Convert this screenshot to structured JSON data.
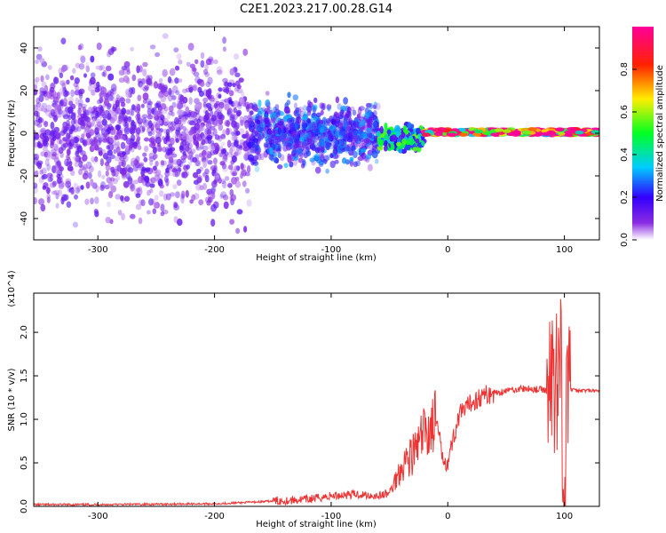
{
  "title": "C2E1.2023.217.00.28.G14",
  "colors": {
    "snr_line": "#ee3333",
    "axes": "#000000",
    "background": "#ffffff"
  },
  "chart_data": [
    {
      "type": "heatmap",
      "title": "C2E1.2023.217.00.28.G14",
      "xlabel": "Height of straight line (km)",
      "ylabel": "Frequency (Hz)",
      "xlim": [
        -355,
        130
      ],
      "ylim": [
        -50,
        50
      ],
      "x_ticks": [
        -300,
        -200,
        -100,
        0,
        100
      ],
      "x_tick_labels": [
        "-300",
        "-200",
        "-100",
        "0",
        "100"
      ],
      "y_ticks": [
        -40,
        -20,
        0,
        20,
        40
      ],
      "y_tick_labels": [
        "-40",
        "-20",
        "0",
        "20",
        "40"
      ],
      "colorbar": {
        "label": "Normalized spectral amplitude",
        "range": [
          0.0,
          1.0
        ],
        "ticks": [
          0.0,
          0.2,
          0.4,
          0.6,
          0.8
        ],
        "tick_labels": [
          "0.0",
          "0.2",
          "0.4",
          "0.6",
          "0.8"
        ],
        "colormap": "rainbow (white → purple → blue → cyan → green → yellow → red → magenta)"
      },
      "description_regions": [
        {
          "x_range": [
            -355,
            -170
          ],
          "freq_spread": [
            -50,
            50
          ],
          "amplitude": 0.1
        },
        {
          "x_range": [
            -170,
            -60
          ],
          "freq_spread": [
            -20,
            20
          ],
          "amplitude": 0.2
        },
        {
          "x_range": [
            -60,
            -20
          ],
          "freq_spread": [
            -10,
            5
          ],
          "amplitude": 0.35
        },
        {
          "x_range": [
            -20,
            130
          ],
          "freq_spread": [
            -1,
            2
          ],
          "amplitude": 0.8
        }
      ],
      "grid": false
    },
    {
      "type": "line",
      "xlabel": "Height of straight line (km)",
      "ylabel": "SNR (10 * v/v)",
      "y_multiplier": "(x10^4)",
      "xlim": [
        -355,
        130
      ],
      "ylim": [
        0,
        2.45
      ],
      "x_ticks": [
        -300,
        -200,
        -100,
        0,
        100
      ],
      "x_tick_labels": [
        "-300",
        "-200",
        "-100",
        "0",
        "100"
      ],
      "y_ticks": [
        0.0,
        0.5,
        1.0,
        1.5,
        2.0
      ],
      "y_tick_labels": [
        "0.0",
        "0.5",
        "1.0",
        "1.5",
        "2.0"
      ],
      "series": [
        {
          "color": "#ee3333",
          "x": [
            -355,
            -300,
            -250,
            -200,
            -180,
            -150,
            -120,
            -100,
            -80,
            -60,
            -50,
            -45,
            -40,
            -35,
            -30,
            -25,
            -20,
            -15,
            -10,
            -5,
            0,
            5,
            10,
            15,
            20,
            30,
            40,
            50,
            60,
            70,
            80,
            85,
            90,
            95,
            97,
            100,
            103,
            105,
            110,
            120,
            130
          ],
          "y": [
            0.02,
            0.02,
            0.025,
            0.03,
            0.04,
            0.06,
            0.08,
            0.12,
            0.14,
            0.12,
            0.15,
            0.3,
            0.45,
            0.55,
            0.6,
            0.7,
            0.85,
            0.9,
            1.0,
            0.6,
            0.5,
            0.8,
            1.05,
            1.1,
            1.2,
            1.27,
            1.3,
            1.33,
            1.35,
            1.35,
            1.34,
            1.33,
            1.4,
            1.6,
            1.7,
            0.05,
            1.45,
            1.35,
            1.33,
            1.33,
            1.32
          ]
        }
      ],
      "grid": false
    }
  ]
}
